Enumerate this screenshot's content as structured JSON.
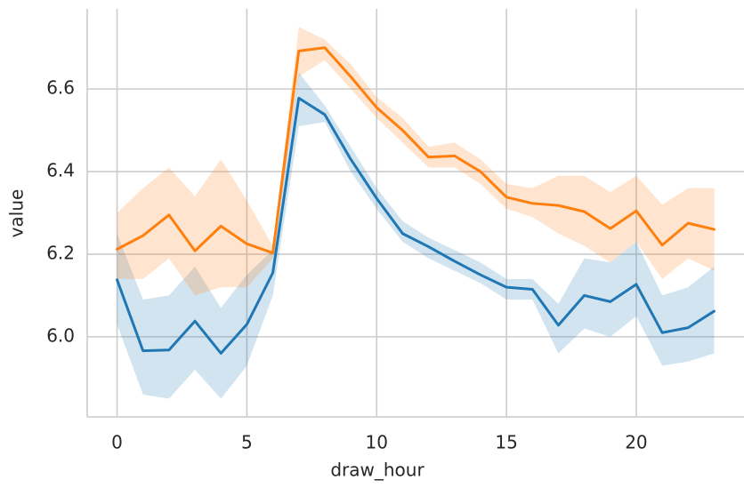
{
  "chart_data": {
    "type": "line",
    "x_label": "draw_hour",
    "y_label": "value",
    "x": [
      0,
      1,
      2,
      3,
      4,
      5,
      6,
      7,
      8,
      9,
      10,
      11,
      12,
      13,
      14,
      15,
      16,
      17,
      18,
      19,
      20,
      21,
      22,
      23
    ],
    "xlim": [
      -1.15,
      24.15
    ],
    "xticks": [
      0,
      5,
      10,
      15,
      20
    ],
    "ylim": [
      5.806,
      6.794
    ],
    "yticks": [
      {
        "value": 6.0,
        "label": "6.0"
      },
      {
        "value": 6.2,
        "label": "6.2"
      },
      {
        "value": 6.4,
        "label": "6.4"
      },
      {
        "value": 6.6,
        "label": "6.6"
      }
    ],
    "grid": true,
    "series": [
      {
        "color": "#1f77b4",
        "values": [
          6.138,
          5.966,
          5.968,
          6.038,
          5.96,
          6.03,
          6.155,
          6.578,
          6.538,
          6.43,
          6.335,
          6.25,
          6.218,
          6.183,
          6.15,
          6.12,
          6.115,
          6.028,
          6.1,
          6.085,
          6.127,
          6.01,
          6.022,
          6.062
        ],
        "lower": [
          6.03,
          5.86,
          5.85,
          5.92,
          5.85,
          5.93,
          6.1,
          6.51,
          6.52,
          6.4,
          6.31,
          6.23,
          6.19,
          6.16,
          6.13,
          6.09,
          6.09,
          5.96,
          6.02,
          6.0,
          6.05,
          5.93,
          5.94,
          5.96
        ],
        "upper": [
          6.25,
          6.09,
          6.1,
          6.17,
          6.07,
          6.15,
          6.21,
          6.64,
          6.56,
          6.46,
          6.36,
          6.28,
          6.24,
          6.21,
          6.18,
          6.14,
          6.14,
          6.08,
          6.19,
          6.18,
          6.23,
          6.1,
          6.12,
          6.17
        ]
      },
      {
        "color": "#ff7f0e",
        "values": [
          6.212,
          6.245,
          6.295,
          6.208,
          6.268,
          6.225,
          6.203,
          6.692,
          6.7,
          6.63,
          6.555,
          6.5,
          6.435,
          6.438,
          6.4,
          6.338,
          6.323,
          6.318,
          6.303,
          6.262,
          6.305,
          6.222,
          6.275,
          6.26
        ],
        "lower": [
          6.14,
          6.14,
          6.19,
          6.1,
          6.12,
          6.12,
          6.19,
          6.63,
          6.67,
          6.6,
          6.53,
          6.47,
          6.41,
          6.41,
          6.37,
          6.31,
          6.29,
          6.25,
          6.22,
          6.18,
          6.23,
          6.14,
          6.19,
          6.16
        ],
        "upper": [
          6.3,
          6.36,
          6.41,
          6.34,
          6.43,
          6.33,
          6.22,
          6.75,
          6.72,
          6.66,
          6.58,
          6.53,
          6.46,
          6.47,
          6.43,
          6.37,
          6.36,
          6.39,
          6.39,
          6.35,
          6.39,
          6.32,
          6.36,
          6.36
        ]
      }
    ]
  }
}
